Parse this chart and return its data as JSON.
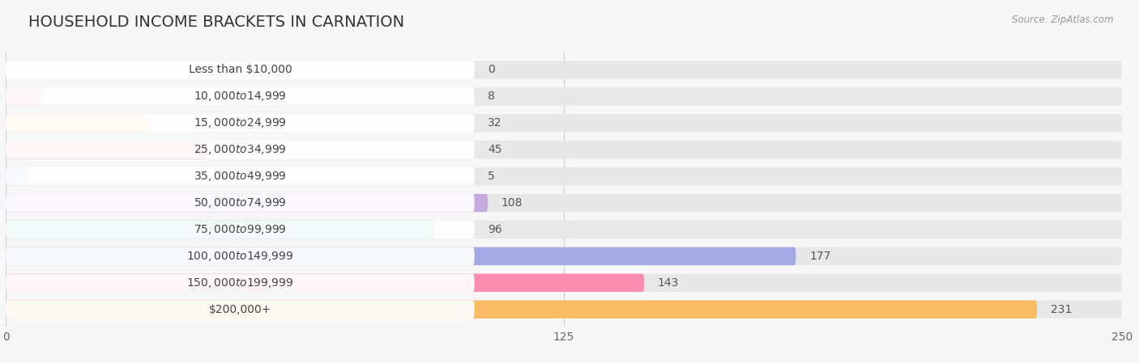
{
  "title": "HOUSEHOLD INCOME BRACKETS IN CARNATION",
  "source": "Source: ZipAtlas.com",
  "categories": [
    "Less than $10,000",
    "$10,000 to $14,999",
    "$15,000 to $24,999",
    "$25,000 to $34,999",
    "$35,000 to $49,999",
    "$50,000 to $74,999",
    "$75,000 to $99,999",
    "$100,000 to $149,999",
    "$150,000 to $199,999",
    "$200,000+"
  ],
  "values": [
    0,
    8,
    32,
    45,
    5,
    108,
    96,
    177,
    143,
    231
  ],
  "colors": [
    "#aaaadc",
    "#f5aac5",
    "#f9ca8e",
    "#f2a8a8",
    "#aac4ec",
    "#c4aade",
    "#7acece",
    "#a4aae4",
    "#fa8cb0",
    "#f9bc64"
  ],
  "xlim": [
    0,
    250
  ],
  "xticks": [
    0,
    125,
    250
  ],
  "background_color": "#f7f7f7",
  "bar_bg_color": "#e8e8e8",
  "title_fontsize": 14,
  "label_fontsize": 10,
  "tick_fontsize": 10,
  "bar_height": 0.68,
  "value_label_color": "#555555",
  "label_bg_color": "#ffffff"
}
